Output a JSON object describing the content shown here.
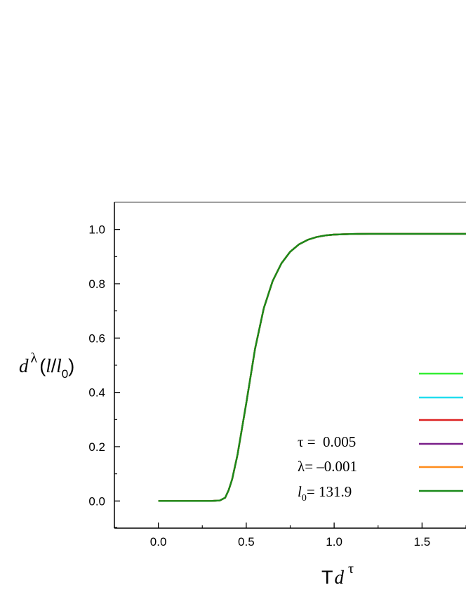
{
  "chart_data": {
    "type": "line",
    "title": "",
    "xlabel": {
      "main": "T",
      "italic": "d",
      "sup": "τ"
    },
    "ylabel": {
      "italic": "d",
      "sup": "λ",
      "paren_open": "(",
      "l": "l",
      "slash": "/",
      "l0": "l",
      "l0_sub": "0",
      "paren_close": ")"
    },
    "xlim": [
      -0.25,
      1.75
    ],
    "ylim": [
      -0.1,
      1.1
    ],
    "x_ticks": [
      {
        "value": 0.0,
        "label": "0.0"
      },
      {
        "value": 0.5,
        "label": "0.5"
      },
      {
        "value": 1.0,
        "label": "1.0"
      },
      {
        "value": 1.5,
        "label": "1.5"
      }
    ],
    "y_ticks": [
      {
        "value": 0.0,
        "label": "0.0"
      },
      {
        "value": 0.2,
        "label": "0.2"
      },
      {
        "value": 0.4,
        "label": "0.4"
      },
      {
        "value": 0.6,
        "label": "0.6"
      },
      {
        "value": 0.8,
        "label": "0.8"
      },
      {
        "value": 1.0,
        "label": "1.0"
      }
    ],
    "grid": false,
    "legend_position": "right",
    "x": [
      0.0,
      0.1,
      0.2,
      0.3,
      0.35,
      0.38,
      0.4,
      0.42,
      0.45,
      0.5,
      0.55,
      0.6,
      0.65,
      0.7,
      0.75,
      0.8,
      0.85,
      0.9,
      0.95,
      1.0,
      1.1,
      1.2,
      1.3,
      1.4,
      1.5,
      1.6,
      1.75
    ],
    "series": [
      {
        "color": "#33ee33",
        "values": [
          0.0,
          0.0,
          0.0,
          0.0,
          0.002,
          0.012,
          0.04,
          0.08,
          0.17,
          0.36,
          0.56,
          0.71,
          0.81,
          0.875,
          0.918,
          0.945,
          0.962,
          0.972,
          0.978,
          0.981,
          0.983,
          0.984,
          0.984,
          0.984,
          0.984,
          0.984,
          0.984
        ]
      },
      {
        "color": "#22ddee",
        "values": [
          0.0,
          0.0,
          0.0,
          0.0,
          0.002,
          0.012,
          0.04,
          0.08,
          0.17,
          0.36,
          0.56,
          0.71,
          0.81,
          0.875,
          0.918,
          0.945,
          0.962,
          0.972,
          0.978,
          0.981,
          0.983,
          0.984,
          0.984,
          0.984,
          0.984,
          0.984,
          0.984
        ]
      },
      {
        "color": "#dd2222",
        "values": [
          0.0,
          0.0,
          0.0,
          0.0,
          0.002,
          0.012,
          0.04,
          0.08,
          0.17,
          0.36,
          0.56,
          0.71,
          0.81,
          0.875,
          0.918,
          0.945,
          0.962,
          0.972,
          0.978,
          0.981,
          0.983,
          0.984,
          0.984,
          0.984,
          0.984,
          0.984,
          0.984
        ]
      },
      {
        "color": "#7a1f8a",
        "values": [
          0.0,
          0.0,
          0.0,
          0.0,
          0.002,
          0.012,
          0.04,
          0.08,
          0.17,
          0.36,
          0.56,
          0.71,
          0.81,
          0.875,
          0.918,
          0.945,
          0.962,
          0.972,
          0.978,
          0.981,
          0.983,
          0.984,
          0.984,
          0.984,
          0.984,
          0.984,
          0.984
        ]
      },
      {
        "color": "#ff8c1a",
        "values": [
          0.0,
          0.0,
          0.0,
          0.0,
          0.002,
          0.012,
          0.04,
          0.08,
          0.17,
          0.36,
          0.56,
          0.71,
          0.81,
          0.875,
          0.918,
          0.945,
          0.962,
          0.972,
          0.978,
          0.981,
          0.983,
          0.984,
          0.984,
          0.984,
          0.984,
          0.984,
          0.984
        ]
      },
      {
        "color": "#1a8a1a",
        "values": [
          0.0,
          0.0,
          0.0,
          0.0,
          0.002,
          0.012,
          0.04,
          0.08,
          0.17,
          0.36,
          0.56,
          0.71,
          0.81,
          0.875,
          0.918,
          0.945,
          0.962,
          0.972,
          0.978,
          0.981,
          0.983,
          0.984,
          0.984,
          0.984,
          0.984,
          0.984,
          0.984
        ]
      }
    ],
    "annotations": [
      {
        "symbol": "τ",
        "eq": " =  ",
        "value": "0.005"
      },
      {
        "symbol": "λ",
        "eq": "= ",
        "value": "–0.001"
      },
      {
        "symbol": "l",
        "sub": "0",
        "eq": "= ",
        "value": "131.9"
      }
    ]
  }
}
